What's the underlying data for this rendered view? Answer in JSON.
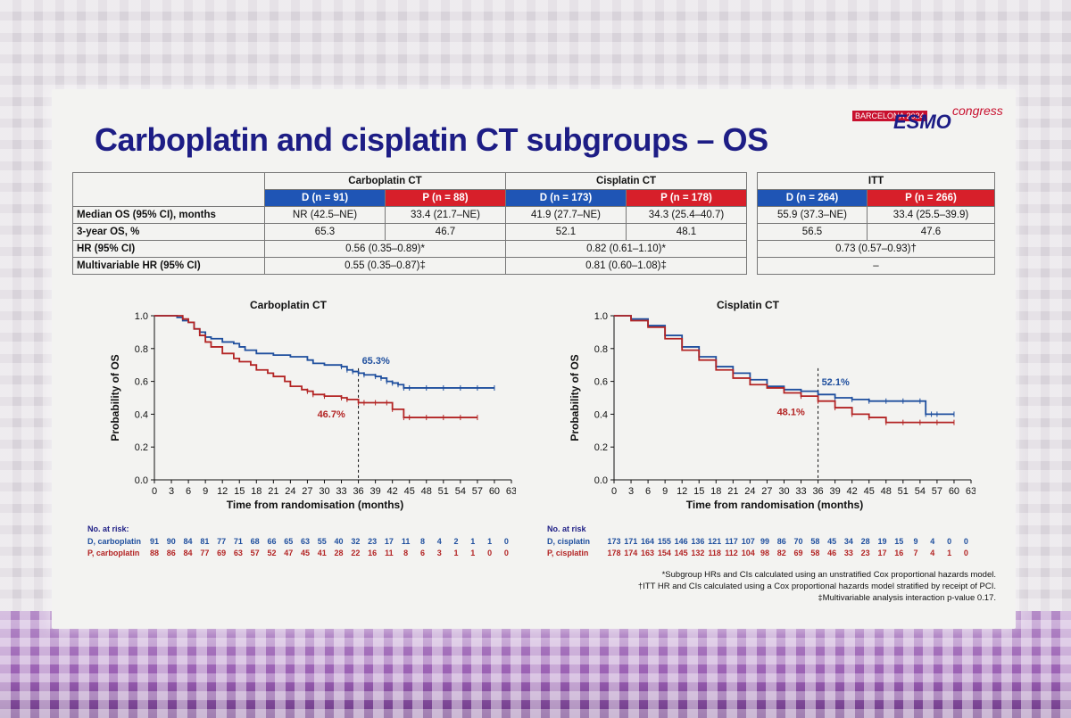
{
  "title": "Carboplatin and cisplatin CT subgroups – OS",
  "logo": {
    "city": "BARCELONA 2024",
    "brand": "ESMO",
    "word": "congress"
  },
  "table": {
    "groups": [
      "Carboplatin CT",
      "Cisplatin CT"
    ],
    "arm_headers": [
      "D (n = 91)",
      "P (n = 88)",
      "D (n = 173)",
      "P (n = 178)"
    ],
    "rows": [
      {
        "label": "Median OS (95% CI), months",
        "cells": [
          "NR (42.5–NE)",
          "33.4 (21.7–NE)",
          "41.9 (27.7–NE)",
          "34.3 (25.4–40.7)"
        ]
      },
      {
        "label": "3-year OS, %",
        "cells": [
          "65.3",
          "46.7",
          "52.1",
          "48.1"
        ]
      },
      {
        "label": "HR (95% CI)",
        "merged": [
          "0.56 (0.35–0.89)*",
          "0.82 (0.61–1.10)*"
        ]
      },
      {
        "label": "Multivariable HR (95% CI)",
        "merged": [
          "0.55 (0.35–0.87)‡",
          "0.81 (0.60–1.08)‡"
        ]
      }
    ]
  },
  "itt": {
    "title": "ITT",
    "arm_headers": [
      "D (n = 264)",
      "P (n = 266)"
    ],
    "median": [
      "55.9 (37.3–NE)",
      "33.4 (25.5–39.9)"
    ],
    "three_year": [
      "56.5",
      "47.6"
    ],
    "hr": "0.73 (0.57–0.93)†",
    "mv_hr": "–"
  },
  "colors": {
    "durvalumab": "#1f4f9e",
    "placebo": "#b32424",
    "title": "#1d1d85"
  },
  "chart_data": [
    {
      "type": "line",
      "title": "Carboplatin CT",
      "xlabel": "Time from randomisation (months)",
      "ylabel": "Probability of OS",
      "xlim": [
        0,
        63
      ],
      "ylim": [
        0,
        1.0
      ],
      "xticks": [
        0,
        3,
        6,
        9,
        12,
        15,
        18,
        21,
        24,
        27,
        30,
        33,
        36,
        39,
        42,
        45,
        48,
        51,
        54,
        57,
        60,
        63
      ],
      "yticks": [
        0,
        0.2,
        0.4,
        0.6,
        0.8,
        1.0
      ],
      "ref_x": 36,
      "annotations": [
        {
          "text": "65.3%",
          "x": 36,
          "y": 0.653,
          "series": 0
        },
        {
          "text": "46.7%",
          "x": 36,
          "y": 0.467,
          "series": 1
        }
      ],
      "series": [
        {
          "x": [
            0,
            3,
            4,
            5,
            6,
            7,
            8,
            9,
            10,
            12,
            14,
            15,
            16,
            18,
            20,
            21,
            24,
            27,
            28,
            30,
            33,
            34,
            35,
            36,
            37,
            39,
            40,
            41,
            42,
            43,
            44,
            45,
            48,
            51,
            54,
            57,
            60
          ],
          "y": [
            1.0,
            1.0,
            0.99,
            0.97,
            0.96,
            0.92,
            0.9,
            0.87,
            0.86,
            0.84,
            0.83,
            0.81,
            0.79,
            0.77,
            0.77,
            0.76,
            0.75,
            0.73,
            0.71,
            0.7,
            0.69,
            0.67,
            0.66,
            0.65,
            0.64,
            0.63,
            0.62,
            0.6,
            0.59,
            0.58,
            0.56,
            0.56,
            0.56,
            0.56,
            0.56,
            0.56,
            0.56
          ]
        },
        {
          "x": [
            0,
            3,
            5,
            6,
            7,
            8,
            9,
            10,
            12,
            14,
            15,
            17,
            18,
            20,
            21,
            23,
            24,
            26,
            27,
            28,
            30,
            33,
            34,
            36,
            37,
            39,
            41,
            42,
            44,
            45,
            48,
            51,
            54,
            57
          ],
          "y": [
            1.0,
            1.0,
            0.98,
            0.96,
            0.92,
            0.88,
            0.84,
            0.81,
            0.77,
            0.74,
            0.72,
            0.7,
            0.67,
            0.65,
            0.63,
            0.6,
            0.57,
            0.55,
            0.54,
            0.52,
            0.51,
            0.5,
            0.49,
            0.47,
            0.47,
            0.47,
            0.47,
            0.43,
            0.38,
            0.38,
            0.38,
            0.38,
            0.38,
            0.38
          ]
        }
      ]
    },
    {
      "type": "line",
      "title": "Cisplatin CT",
      "xlabel": "Time from randomisation (months)",
      "ylabel": "Probability of OS",
      "xlim": [
        0,
        63
      ],
      "ylim": [
        0,
        1.0
      ],
      "xticks": [
        0,
        3,
        6,
        9,
        12,
        15,
        18,
        21,
        24,
        27,
        30,
        33,
        36,
        39,
        42,
        45,
        48,
        51,
        54,
        57,
        60,
        63
      ],
      "yticks": [
        0,
        0.2,
        0.4,
        0.6,
        0.8,
        1.0
      ],
      "ref_x": 36,
      "annotations": [
        {
          "text": "52.1%",
          "x": 36,
          "y": 0.521,
          "series": 0
        },
        {
          "text": "48.1%",
          "x": 36,
          "y": 0.481,
          "series": 1
        }
      ],
      "series": [
        {
          "x": [
            0,
            3,
            6,
            9,
            12,
            15,
            18,
            21,
            24,
            27,
            30,
            33,
            36,
            39,
            42,
            45,
            48,
            51,
            54,
            55,
            56,
            57,
            60
          ],
          "y": [
            1.0,
            0.98,
            0.94,
            0.88,
            0.81,
            0.75,
            0.69,
            0.65,
            0.61,
            0.57,
            0.55,
            0.54,
            0.52,
            0.5,
            0.49,
            0.48,
            0.48,
            0.48,
            0.48,
            0.4,
            0.4,
            0.4,
            0.4
          ]
        },
        {
          "x": [
            0,
            3,
            6,
            9,
            12,
            15,
            18,
            21,
            24,
            27,
            30,
            33,
            36,
            39,
            42,
            45,
            48,
            51,
            54,
            57,
            60
          ],
          "y": [
            1.0,
            0.97,
            0.93,
            0.86,
            0.79,
            0.73,
            0.67,
            0.62,
            0.58,
            0.56,
            0.53,
            0.51,
            0.48,
            0.44,
            0.4,
            0.38,
            0.35,
            0.35,
            0.35,
            0.35,
            0.35
          ]
        }
      ]
    }
  ],
  "at_risk": [
    {
      "title": "No. at risk:",
      "rows": [
        {
          "label": "D, carboplatin",
          "values": [
            "91",
            "90",
            "84",
            "81",
            "77",
            "71",
            "68",
            "66",
            "65",
            "63",
            "55",
            "40",
            "32",
            "23",
            "17",
            "11",
            "8",
            "4",
            "2",
            "1",
            "1",
            "0"
          ]
        },
        {
          "label": "P, carboplatin",
          "values": [
            "88",
            "86",
            "84",
            "77",
            "69",
            "63",
            "57",
            "52",
            "47",
            "45",
            "41",
            "28",
            "22",
            "16",
            "11",
            "8",
            "6",
            "3",
            "1",
            "1",
            "0",
            "0"
          ]
        }
      ]
    },
    {
      "title": "No. at risk",
      "rows": [
        {
          "label": "D, cisplatin",
          "values": [
            "173",
            "171",
            "164",
            "155",
            "146",
            "136",
            "121",
            "117",
            "107",
            "99",
            "86",
            "70",
            "58",
            "45",
            "34",
            "28",
            "19",
            "15",
            "9",
            "4",
            "0",
            "0"
          ]
        },
        {
          "label": "P, cisplatin",
          "values": [
            "178",
            "174",
            "163",
            "154",
            "145",
            "132",
            "118",
            "112",
            "104",
            "98",
            "82",
            "69",
            "58",
            "46",
            "33",
            "23",
            "17",
            "16",
            "7",
            "4",
            "1",
            "0"
          ]
        }
      ]
    }
  ],
  "footnotes": [
    "*Subgroup HRs and CIs calculated using an unstratified Cox proportional hazards model.",
    "†ITT HR and CIs calculated using a Cox proportional hazards model stratified by receipt of PCI.",
    "‡Multivariable analysis interaction p-value 0.17."
  ]
}
